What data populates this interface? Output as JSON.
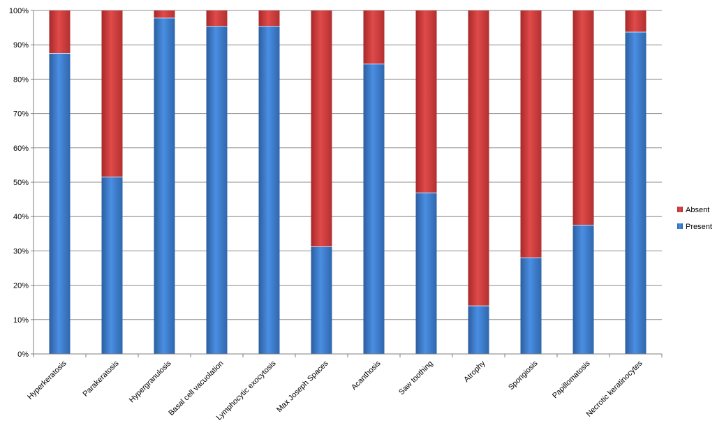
{
  "chart_data": {
    "type": "bar",
    "stacked": "percent",
    "categories": [
      "Hyperkeratosis",
      "Parakeratosis",
      "Hypergranulosis",
      "Basal cell vacuolation",
      "Lymphocytic exocytosis",
      "Max Joseph Spaces",
      "Acanthosis",
      "Saw toothing",
      "Atrophy",
      "Spongiosis",
      "Papillomatosis",
      "Necrotic keratinocytes"
    ],
    "series": [
      {
        "name": "Present",
        "color": "#3b7dd8",
        "values": [
          87.5,
          51.5,
          97.8,
          95.4,
          95.4,
          31.2,
          84.4,
          46.9,
          14.0,
          28.0,
          37.5,
          93.7
        ]
      },
      {
        "name": "Absent",
        "color": "#d64040",
        "values": [
          12.5,
          48.5,
          2.2,
          4.6,
          4.6,
          68.8,
          15.6,
          53.1,
          86.0,
          72.0,
          62.5,
          6.3
        ]
      }
    ],
    "y_ticks": [
      "0%",
      "10%",
      "20%",
      "30%",
      "40%",
      "50%",
      "60%",
      "70%",
      "80%",
      "90%",
      "100%"
    ],
    "ylim": [
      0,
      100
    ],
    "grid": true,
    "legend": "right",
    "legend_order": [
      "Absent",
      "Present"
    ]
  }
}
